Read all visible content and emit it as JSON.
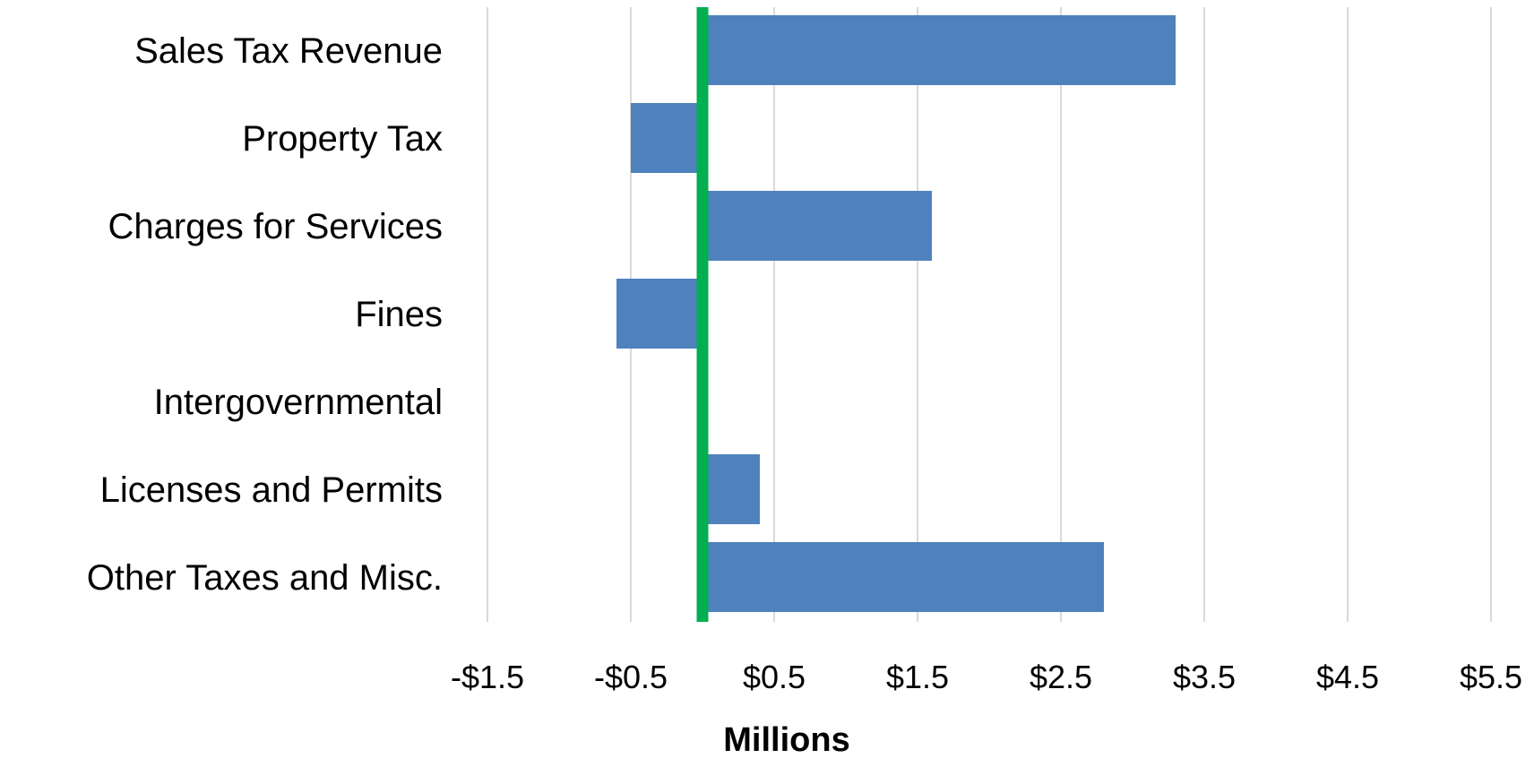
{
  "chart_data": {
    "type": "bar",
    "orientation": "horizontal",
    "categories": [
      "Sales Tax Revenue",
      "Property Tax",
      "Charges for Services",
      "Fines",
      "Intergovernmental",
      "Licenses and Permits",
      "Other Taxes and Misc."
    ],
    "values": [
      3.3,
      -0.5,
      1.6,
      -0.6,
      0,
      0.4,
      2.8
    ],
    "xlabel": "Millions",
    "ylabel": "",
    "xlim": [
      -1.5,
      5.5
    ],
    "x_ticks": [
      -1.5,
      -0.5,
      0.5,
      1.5,
      2.5,
      3.5,
      4.5,
      5.5
    ],
    "x_tick_labels": [
      "-$1.5",
      "-$0.5",
      "$0.5",
      "$1.5",
      "$2.5",
      "$3.5",
      "$4.5",
      "$5.5"
    ],
    "grid": true,
    "legend": "none",
    "reference_line_value": 0
  },
  "colors": {
    "bar": "#4f81bd",
    "gridline": "#d9d9d9",
    "reference_line": "#00b050",
    "background": "#ffffff"
  }
}
